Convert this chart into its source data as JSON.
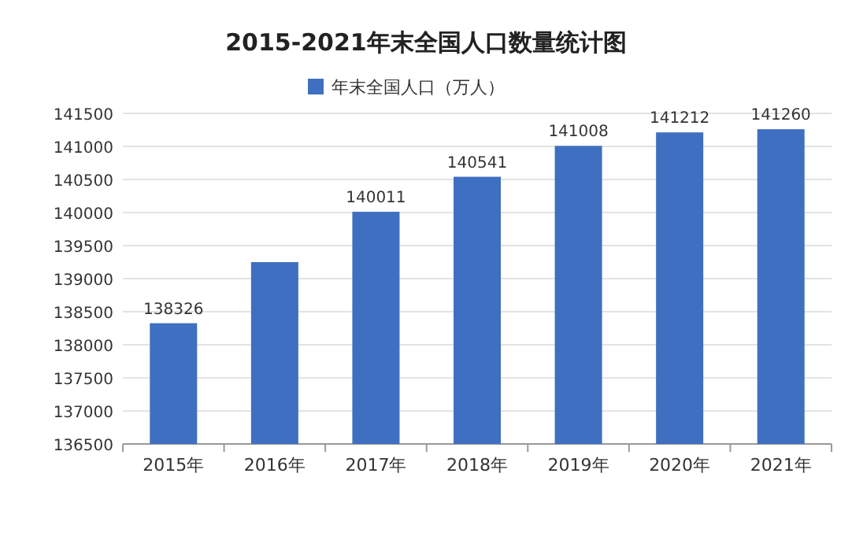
{
  "chart_data": {
    "type": "bar",
    "title": "2015-2021年末全国人口数量统计图",
    "categories": [
      "2015年",
      "2016年",
      "2017年",
      "2018年",
      "2019年",
      "2020年",
      "2021年"
    ],
    "series": [
      {
        "name": "年末全国人口（万人）",
        "color": "#3f6fc0",
        "values": [
          138326,
          139250,
          140011,
          140541,
          141008,
          141212,
          141260
        ],
        "value_labels": [
          "138326",
          null,
          "140011",
          "140541",
          "141008",
          "141212",
          "141260"
        ]
      }
    ],
    "ylim": [
      136500,
      141500
    ],
    "yticks": [
      136500,
      137000,
      137500,
      138000,
      138500,
      139000,
      139500,
      140000,
      140500,
      141000,
      141500
    ],
    "grid": "y",
    "legend": "top"
  }
}
